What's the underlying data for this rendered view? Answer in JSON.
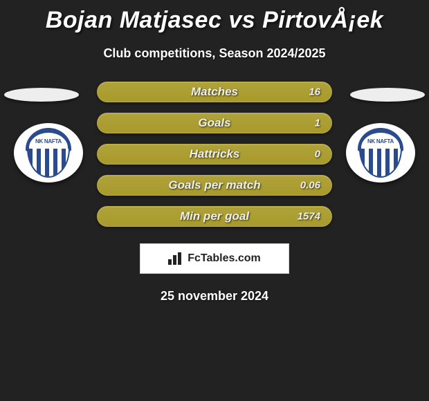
{
  "title": "Bojan Matjasec vs PirtovÅ¡ek",
  "subtitle": "Club competitions, Season 2024/2025",
  "date": "25 november 2024",
  "brand": "FcTables.com",
  "colors": {
    "background": "#222222",
    "bar": "#a89a2a",
    "text": "#ffffff",
    "badge_primary": "#2a4b8d",
    "badge_bg": "#ffffff"
  },
  "stats": [
    {
      "label": "Matches",
      "value_right": "16"
    },
    {
      "label": "Goals",
      "value_right": "1"
    },
    {
      "label": "Hattricks",
      "value_right": "0"
    },
    {
      "label": "Goals per match",
      "value_right": "0.06"
    },
    {
      "label": "Min per goal",
      "value_right": "1574"
    }
  ],
  "badges": {
    "left": {
      "name": "NK NAFTA",
      "short": "NK NAFTA"
    },
    "right": {
      "name": "NK NAFTA",
      "short": "NK NAFTA"
    }
  }
}
